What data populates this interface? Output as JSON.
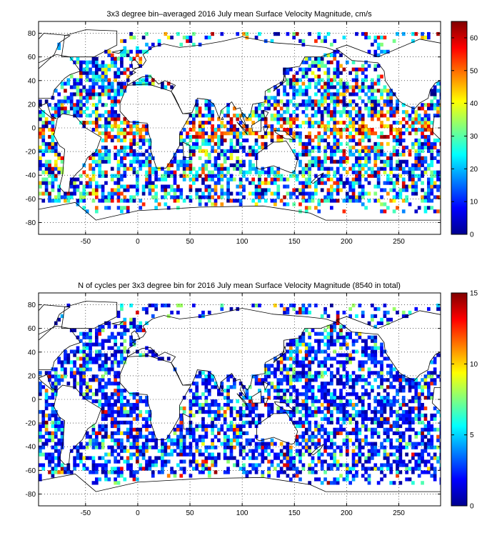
{
  "chart_data": [
    {
      "type": "heatmap",
      "title": "3x3 degree bin–averaged 2016 July mean Surface Velocity Magnitude, cm/s",
      "xlim": [
        -95,
        290
      ],
      "ylim": [
        -90,
        90
      ],
      "xticks": [
        -50,
        0,
        50,
        100,
        150,
        200,
        250
      ],
      "yticks": [
        -80,
        -60,
        -40,
        -20,
        0,
        20,
        40,
        60,
        80
      ],
      "grid": "dotted",
      "colorbar": {
        "min": 0,
        "max": 65,
        "ticks": [
          0,
          10,
          20,
          30,
          40,
          50,
          60
        ],
        "colormap": "jet"
      },
      "bin_size_deg": 3
    },
    {
      "type": "heatmap",
      "title": "N of cycles per 3x3 degree bin for 2016 July mean Surface Velocity Magnitude (8540 in total)",
      "xlim": [
        -95,
        290
      ],
      "ylim": [
        -90,
        90
      ],
      "xticks": [
        -50,
        0,
        50,
        100,
        150,
        200,
        250
      ],
      "yticks": [
        -80,
        -60,
        -40,
        -20,
        0,
        20,
        40,
        60,
        80
      ],
      "grid": "dotted",
      "colorbar": {
        "min": 0,
        "max": 15,
        "ticks": [
          0,
          5,
          10,
          15
        ],
        "colormap": "jet"
      },
      "bin_size_deg": 3
    }
  ]
}
